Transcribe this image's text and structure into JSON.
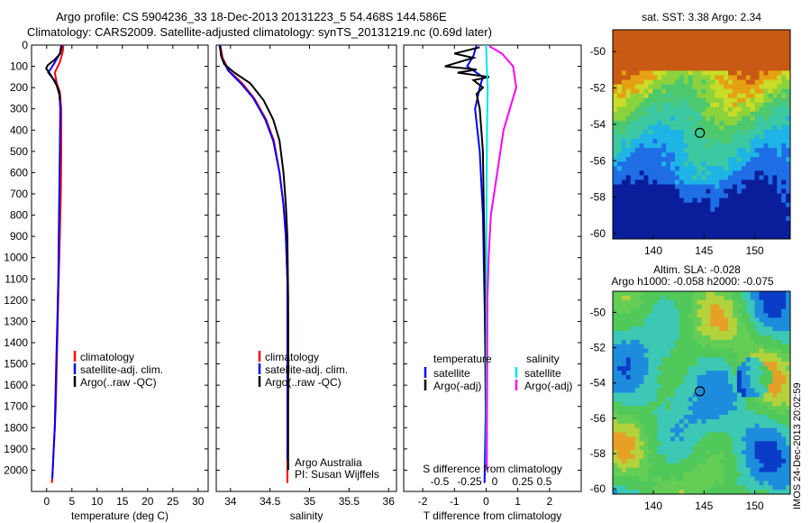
{
  "header": {
    "line1": "Argo profile: CS 5904236_33 18-Dec-2013 20131223_5 54.468S 144.586E",
    "line2": "Climatology: CARS2009. Satellite-adjusted climatology: synTS_20131219.nc (0.69d later)"
  },
  "colors": {
    "climatology": "#ff0000",
    "satellite": "#0000ff",
    "argo": "#000000",
    "sal_satellite": "#00e5ee",
    "sal_argo": "#ff00ff"
  },
  "side_text": {
    "timestamp": "IMOS 24-Dec-2013 20:02:59"
  },
  "chart_data": [
    {
      "type": "line",
      "id": "temperature",
      "xlabel": "temperature (deg C)",
      "xlim": [
        -3,
        32
      ],
      "ylim": [
        2100,
        0
      ],
      "xticks": [
        0,
        5,
        10,
        15,
        20,
        25,
        30
      ],
      "yticks": [
        0,
        100,
        200,
        300,
        400,
        500,
        600,
        700,
        800,
        900,
        1000,
        1100,
        1200,
        1300,
        1400,
        1500,
        1600,
        1700,
        1800,
        1900,
        2000
      ],
      "legend": [
        "climatology",
        "satellite-adj. clim.",
        "Argo(..raw -QC)"
      ],
      "legend_position": "lower-right",
      "series": [
        {
          "name": "climatology",
          "color": "#ff0000",
          "x": [
            3.3,
            3.2,
            2.6,
            1.6,
            2.0,
            2.6,
            2.9,
            2.9,
            2.8,
            2.6,
            2.4,
            2.2,
            2.0,
            1.8,
            1.6,
            1.4,
            1.2,
            1.1,
            1.0
          ],
          "y": [
            0,
            30,
            80,
            130,
            180,
            220,
            300,
            500,
            700,
            900,
            1100,
            1300,
            1500,
            1700,
            1800,
            1900,
            2000,
            2040,
            2060
          ]
        },
        {
          "name": "satellite-adj. clim.",
          "color": "#0000ff",
          "x": [
            2.9,
            2.6,
            1.4,
            0.3,
            1.7,
            2.5,
            2.7,
            2.6,
            2.5,
            2.4,
            2.3,
            2.1,
            1.9,
            1.7,
            1.6,
            1.4,
            1.2,
            1.1
          ],
          "y": [
            0,
            40,
            90,
            130,
            170,
            220,
            300,
            500,
            700,
            900,
            1100,
            1300,
            1500,
            1700,
            1800,
            1900,
            2000,
            2040
          ]
        },
        {
          "name": "Argo(..raw -QC)",
          "color": "#000000",
          "x": [
            3.0,
            2.7,
            1.5,
            0.2,
            -0.1,
            0.8,
            2.0,
            2.6,
            2.6
          ],
          "y": [
            5,
            40,
            70,
            95,
            110,
            140,
            190,
            240,
            260
          ]
        }
      ]
    },
    {
      "type": "line",
      "id": "salinity",
      "xlabel": "salinity",
      "xlim": [
        33.82,
        36.1
      ],
      "ylim": [
        2100,
        0
      ],
      "xticks": [
        34,
        34.5,
        35,
        35.5,
        36
      ],
      "legend": [
        "climatology",
        "satellite-adj. clim.",
        "Argo(..raw -QC)"
      ],
      "legend_position": "lower-right",
      "annotations": [
        "Argo Australia",
        "PI: Susan Wijffels"
      ],
      "series": [
        {
          "name": "climatology",
          "color": "#ff0000",
          "x": [
            33.87,
            33.9,
            33.98,
            34.15,
            34.3,
            34.45,
            34.55,
            34.62,
            34.67,
            34.7,
            34.72,
            34.73,
            34.73,
            34.72,
            34.72
          ],
          "y": [
            0,
            60,
            120,
            180,
            250,
            350,
            450,
            600,
            750,
            900,
            1100,
            1300,
            1600,
            1900,
            2060
          ]
        },
        {
          "name": "satellite-adj. clim.",
          "color": "#0000ff",
          "x": [
            33.86,
            33.89,
            33.97,
            34.13,
            34.29,
            34.44,
            34.54,
            34.62,
            34.67,
            34.7,
            34.72,
            34.72,
            34.72,
            34.72
          ],
          "y": [
            0,
            60,
            120,
            180,
            250,
            350,
            450,
            600,
            750,
            900,
            1100,
            1300,
            1600,
            1950
          ]
        },
        {
          "name": "Argo(..raw -QC)",
          "color": "#000000",
          "x": [
            33.87,
            33.88,
            33.92,
            34.05,
            34.25,
            34.42,
            34.54,
            34.62,
            34.67,
            34.7,
            34.72,
            34.73,
            34.73,
            34.73
          ],
          "y": [
            5,
            50,
            90,
            130,
            180,
            260,
            350,
            450,
            600,
            750,
            900,
            1200,
            1600,
            2000
          ]
        }
      ]
    },
    {
      "type": "line",
      "id": "difference",
      "xlabel": "T difference from climatology",
      "xlabel_top": "S difference from climatology",
      "xlim": [
        -2.6,
        3.0
      ],
      "ylim": [
        2100,
        0
      ],
      "xticks": [
        -2,
        -1,
        0,
        1,
        2
      ],
      "xticks_top_labels": [
        "-0.5",
        "-0.25",
        "0",
        "0.25",
        "0.5"
      ],
      "legend_titles": [
        "temperature",
        "salinity"
      ],
      "legend": [
        "satellite",
        "Argo(-adj)",
        "satellite",
        "Argo(-adj)"
      ],
      "legend_position": "lower-center",
      "series": [
        {
          "name": "temperature satellite",
          "color": "#0000ff",
          "x": [
            -0.3,
            -0.4,
            -0.6,
            -0.1,
            -0.2,
            -0.35,
            -0.2,
            -0.1,
            -0.05,
            0.0,
            -0.05
          ],
          "y": [
            0,
            50,
            100,
            150,
            200,
            300,
            500,
            800,
            1200,
            1600,
            2060
          ]
        },
        {
          "name": "temperature Argo(-adj)",
          "color": "#000000",
          "x": [
            -0.2,
            -1.0,
            -0.4,
            -1.3,
            -0.3,
            -0.9,
            0.1,
            -0.4,
            -0.1,
            -0.3,
            -0.2,
            -0.1,
            -0.05,
            0.0
          ],
          "y": [
            10,
            40,
            60,
            100,
            115,
            130,
            150,
            165,
            200,
            230,
            300,
            500,
            1000,
            2000
          ]
        },
        {
          "name": "salinity satellite",
          "color": "#00e5ee",
          "x": [
            0.0,
            0.02,
            0.05,
            0.03,
            0.01,
            0.01,
            0.0
          ],
          "y": [
            0,
            100,
            200,
            400,
            800,
            1400,
            2000
          ]
        },
        {
          "name": "salinity Argo(-adj)",
          "color": "#ff00ff",
          "x": [
            0.1,
            0.5,
            0.85,
            0.95,
            0.75,
            0.55,
            0.45,
            0.35,
            0.25,
            0.15,
            0.08,
            0.04,
            0.02
          ],
          "y": [
            5,
            40,
            100,
            200,
            300,
            400,
            500,
            600,
            700,
            800,
            1000,
            1200,
            2000
          ]
        }
      ]
    },
    {
      "type": "heatmap",
      "id": "sst_map",
      "title": "sat. SST: 3.38 Argo: 2.34",
      "xlim": [
        136,
        153.5
      ],
      "ylim": [
        -60.3,
        -48.8
      ],
      "xticks": [
        140,
        145,
        150
      ],
      "yticks": [
        -50,
        -52,
        -54,
        -56,
        -58,
        -60
      ],
      "marker": {
        "x": 144.586,
        "y": -54.468
      }
    },
    {
      "type": "heatmap",
      "id": "sla_map",
      "title": "Altim. SLA: -0.028",
      "subtitle": "Argo h1000: -0.058 h2000: -0.075",
      "xlim": [
        136,
        153.5
      ],
      "ylim": [
        -60.3,
        -48.8
      ],
      "xticks": [
        140,
        145,
        150
      ],
      "yticks": [
        -50,
        -52,
        -54,
        -56,
        -58,
        -60
      ],
      "marker": {
        "x": 144.586,
        "y": -54.468
      }
    }
  ]
}
